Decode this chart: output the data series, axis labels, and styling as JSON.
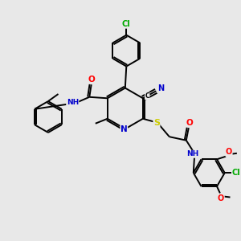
{
  "bg_color": "#e8e8e8",
  "atom_colors": {
    "C": "#000000",
    "N": "#0000cc",
    "O": "#ff0000",
    "S": "#cccc00",
    "Cl": "#00aa00",
    "H": "#000000"
  },
  "figsize": [
    3.0,
    3.0
  ],
  "dpi": 100
}
